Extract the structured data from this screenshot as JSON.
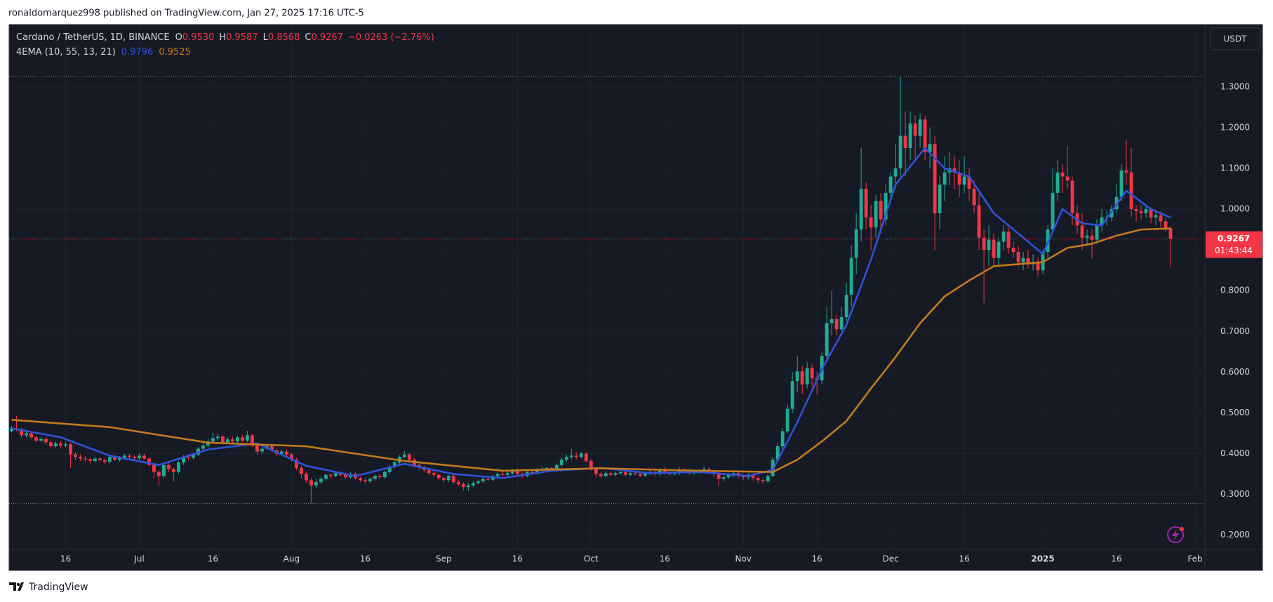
{
  "header": {
    "published": "ronaldomarquez998 published on TradingView.com, Jan 27, 2025 17:16 UTC-5"
  },
  "footer": {
    "brand": "TradingView"
  },
  "chart_data": {
    "type": "candlestick",
    "symbol": "Cardano / TetherUS, 1D, BINANCE",
    "legend": [
      {
        "label": "O",
        "value": "0.9530"
      },
      {
        "label": "H",
        "value": "0.9587"
      },
      {
        "label": "L",
        "value": "0.8568"
      },
      {
        "label": "C",
        "value": "0.9267"
      }
    ],
    "change": "−0.0263 (−2.76%)",
    "indicator": {
      "name": "4EMA (10, 55, 13, 21)",
      "values": [
        "0.9796",
        "0.9525"
      ]
    },
    "currency": "USDT",
    "countdown": "01:43:44",
    "up_color": "#22ab94",
    "down_color": "#f23645",
    "grid": true,
    "xlim": [
      -0.5,
      243
    ],
    "ylim": [
      0.165,
      1.453
    ],
    "xticks": [
      {
        "value": 11,
        "label": "16"
      },
      {
        "value": 26,
        "label": "Jul"
      },
      {
        "value": 41,
        "label": "16"
      },
      {
        "value": 57,
        "label": "Aug"
      },
      {
        "value": 72,
        "label": "16"
      },
      {
        "value": 88,
        "label": "Sep"
      },
      {
        "value": 103,
        "label": "16"
      },
      {
        "value": 118,
        "label": "Oct"
      },
      {
        "value": 133,
        "label": "16"
      },
      {
        "value": 149,
        "label": "Nov"
      },
      {
        "value": 164,
        "label": "16"
      },
      {
        "value": 179,
        "label": "Dec"
      },
      {
        "value": 194,
        "label": "16"
      },
      {
        "value": 210,
        "label": "2025"
      },
      {
        "value": 225,
        "label": "16"
      },
      {
        "value": 241,
        "label": "Feb"
      }
    ],
    "yticks": [
      {
        "value": 0.2,
        "label": "0.2000"
      },
      {
        "value": 0.3,
        "label": "0.3000"
      },
      {
        "value": 0.4,
        "label": "0.4000"
      },
      {
        "value": 0.5,
        "label": "0.5000"
      },
      {
        "value": 0.6,
        "label": "0.6000"
      },
      {
        "value": 0.7,
        "label": "0.7000"
      },
      {
        "value": 0.8,
        "label": "0.8000"
      },
      {
        "value": 0.9,
        "label": "0.9000"
      },
      {
        "value": 1.0,
        "label": "1.0000"
      },
      {
        "value": 1.1,
        "label": "1.1000"
      },
      {
        "value": 1.2,
        "label": "1.2000"
      },
      {
        "value": 1.3,
        "label": "1.3000"
      }
    ],
    "candles": {
      "open": [
        0.455,
        0.462,
        0.458,
        0.445,
        0.45,
        0.44,
        0.432,
        0.436,
        0.428,
        0.418,
        0.425,
        0.42,
        0.423,
        0.398,
        0.392,
        0.388,
        0.386,
        0.382,
        0.388,
        0.384,
        0.38,
        0.392,
        0.385,
        0.39,
        0.395,
        0.392,
        0.389,
        0.395,
        0.388,
        0.372,
        0.355,
        0.345,
        0.372,
        0.362,
        0.355,
        0.378,
        0.392,
        0.39,
        0.398,
        0.412,
        0.42,
        0.43,
        0.438,
        0.442,
        0.428,
        0.435,
        0.43,
        0.44,
        0.432,
        0.445,
        0.42,
        0.405,
        0.412,
        0.418,
        0.408,
        0.4,
        0.405,
        0.398,
        0.385,
        0.365,
        0.35,
        0.335,
        0.322,
        0.33,
        0.338,
        0.348,
        0.345,
        0.352,
        0.348,
        0.342,
        0.35,
        0.34,
        0.335,
        0.332,
        0.338,
        0.345,
        0.342,
        0.355,
        0.368,
        0.378,
        0.392,
        0.398,
        0.385,
        0.372,
        0.365,
        0.36,
        0.352,
        0.348,
        0.34,
        0.335,
        0.345,
        0.33,
        0.325,
        0.318,
        0.322,
        0.328,
        0.332,
        0.338,
        0.336,
        0.345,
        0.35,
        0.348,
        0.352,
        0.358,
        0.35,
        0.345,
        0.355,
        0.352,
        0.36,
        0.362,
        0.365,
        0.36,
        0.372,
        0.385,
        0.392,
        0.395,
        0.392,
        0.4,
        0.382,
        0.362,
        0.35,
        0.345,
        0.352,
        0.348,
        0.352,
        0.355,
        0.348,
        0.352,
        0.35,
        0.346,
        0.352,
        0.355,
        0.35,
        0.358,
        0.355,
        0.35,
        0.352,
        0.36,
        0.358,
        0.352,
        0.355,
        0.358,
        0.362,
        0.355,
        0.35,
        0.338,
        0.342,
        0.348,
        0.352,
        0.345,
        0.342,
        0.348,
        0.34,
        0.335,
        0.332,
        0.345,
        0.385,
        0.418,
        0.455,
        0.51,
        0.578,
        0.602,
        0.57,
        0.61,
        0.585,
        0.58,
        0.64,
        0.72,
        0.73,
        0.705,
        0.735,
        0.79,
        0.88,
        0.95,
        1.05,
        0.98,
        0.955,
        1.02,
        0.975,
        1.04,
        1.08,
        1.1,
        1.18,
        1.15,
        1.21,
        1.18,
        1.22,
        1.14,
        1.16,
        0.99,
        1.06,
        1.09,
        1.1,
        1.09,
        1.06,
        1.08,
        1.05,
        1.01,
        0.93,
        0.9,
        0.925,
        0.88,
        0.92,
        0.945,
        0.905,
        0.895,
        0.87,
        0.88,
        0.865,
        0.87,
        0.85,
        0.895,
        0.95,
        1.04,
        1.09,
        1.08,
        1.07,
        0.99,
        0.96,
        0.93,
        0.935,
        0.925,
        0.96,
        0.98,
        0.98,
        1.0,
        1.03,
        1.095,
        1.09,
        1.0,
        0.995,
        0.99,
        1.0,
        0.98,
        0.985,
        0.97,
        0.953
      ],
      "high": [
        0.468,
        0.492,
        0.463,
        0.456,
        0.455,
        0.444,
        0.442,
        0.44,
        0.432,
        0.43,
        0.43,
        0.428,
        0.426,
        0.404,
        0.398,
        0.394,
        0.39,
        0.392,
        0.392,
        0.388,
        0.396,
        0.396,
        0.394,
        0.399,
        0.399,
        0.396,
        0.4,
        0.4,
        0.392,
        0.376,
        0.36,
        0.376,
        0.378,
        0.366,
        0.382,
        0.396,
        0.398,
        0.402,
        0.416,
        0.426,
        0.436,
        0.452,
        0.45,
        0.446,
        0.44,
        0.442,
        0.444,
        0.446,
        0.456,
        0.448,
        0.424,
        0.416,
        0.422,
        0.422,
        0.412,
        0.41,
        0.41,
        0.402,
        0.39,
        0.37,
        0.356,
        0.34,
        0.338,
        0.344,
        0.352,
        0.352,
        0.356,
        0.356,
        0.352,
        0.354,
        0.354,
        0.344,
        0.34,
        0.342,
        0.348,
        0.35,
        0.358,
        0.372,
        0.382,
        0.396,
        0.406,
        0.402,
        0.39,
        0.376,
        0.37,
        0.364,
        0.358,
        0.352,
        0.344,
        0.348,
        0.348,
        0.336,
        0.33,
        0.328,
        0.332,
        0.336,
        0.342,
        0.342,
        0.348,
        0.354,
        0.356,
        0.356,
        0.362,
        0.364,
        0.354,
        0.358,
        0.358,
        0.364,
        0.368,
        0.368,
        0.368,
        0.376,
        0.39,
        0.398,
        0.412,
        0.404,
        0.404,
        0.404,
        0.386,
        0.366,
        0.354,
        0.356,
        0.356,
        0.356,
        0.36,
        0.358,
        0.356,
        0.356,
        0.354,
        0.356,
        0.358,
        0.358,
        0.362,
        0.366,
        0.358,
        0.356,
        0.366,
        0.364,
        0.362,
        0.358,
        0.362,
        0.368,
        0.366,
        0.36,
        0.354,
        0.346,
        0.352,
        0.356,
        0.356,
        0.35,
        0.352,
        0.352,
        0.344,
        0.34,
        0.35,
        0.392,
        0.425,
        0.462,
        0.52,
        0.6,
        0.64,
        0.615,
        0.625,
        0.62,
        0.6,
        0.65,
        0.76,
        0.8,
        0.74,
        0.76,
        0.82,
        0.91,
        0.99,
        1.15,
        1.065,
        1.01,
        1.035,
        1.04,
        1.06,
        1.09,
        1.16,
        1.325,
        1.24,
        1.24,
        1.23,
        1.235,
        1.23,
        1.2,
        1.18,
        1.08,
        1.13,
        1.14,
        1.13,
        1.12,
        1.13,
        1.1,
        1.07,
        1.04,
        0.95,
        0.96,
        0.94,
        0.93,
        0.96,
        0.955,
        0.92,
        0.91,
        0.895,
        0.9,
        0.89,
        0.88,
        0.9,
        0.96,
        1.1,
        1.12,
        1.11,
        1.155,
        1.08,
        1.01,
        0.99,
        0.95,
        0.95,
        0.975,
        1.0,
        0.995,
        1.01,
        1.06,
        1.11,
        1.17,
        1.15,
        1.01,
        1.01,
        1.01,
        1.005,
        0.995,
        0.995,
        0.98,
        0.9587
      ],
      "low": [
        0.452,
        0.455,
        0.44,
        0.44,
        0.436,
        0.428,
        0.428,
        0.422,
        0.412,
        0.414,
        0.414,
        0.415,
        0.365,
        0.385,
        0.382,
        0.38,
        0.376,
        0.378,
        0.379,
        0.374,
        0.376,
        0.382,
        0.381,
        0.386,
        0.388,
        0.385,
        0.384,
        0.384,
        0.368,
        0.34,
        0.322,
        0.34,
        0.355,
        0.332,
        0.35,
        0.372,
        0.384,
        0.386,
        0.394,
        0.406,
        0.416,
        0.425,
        0.432,
        0.424,
        0.424,
        0.426,
        0.425,
        0.428,
        0.428,
        0.416,
        0.398,
        0.4,
        0.408,
        0.404,
        0.394,
        0.396,
        0.394,
        0.38,
        0.36,
        0.34,
        0.328,
        0.278,
        0.316,
        0.326,
        0.334,
        0.34,
        0.342,
        0.344,
        0.338,
        0.338,
        0.336,
        0.33,
        0.328,
        0.328,
        0.334,
        0.338,
        0.338,
        0.35,
        0.364,
        0.374,
        0.388,
        0.38,
        0.366,
        0.36,
        0.354,
        0.346,
        0.342,
        0.334,
        0.33,
        0.33,
        0.326,
        0.32,
        0.31,
        0.308,
        0.318,
        0.324,
        0.328,
        0.332,
        0.332,
        0.34,
        0.344,
        0.344,
        0.348,
        0.346,
        0.34,
        0.342,
        0.348,
        0.348,
        0.355,
        0.358,
        0.356,
        0.356,
        0.368,
        0.38,
        0.386,
        0.386,
        0.388,
        0.378,
        0.358,
        0.342,
        0.34,
        0.342,
        0.344,
        0.344,
        0.348,
        0.344,
        0.344,
        0.346,
        0.342,
        0.342,
        0.348,
        0.346,
        0.346,
        0.35,
        0.346,
        0.346,
        0.348,
        0.352,
        0.348,
        0.348,
        0.35,
        0.352,
        0.35,
        0.342,
        0.32,
        0.332,
        0.338,
        0.342,
        0.34,
        0.336,
        0.336,
        0.334,
        0.328,
        0.326,
        0.328,
        0.342,
        0.38,
        0.41,
        0.45,
        0.5,
        0.55,
        0.545,
        0.56,
        0.565,
        0.545,
        0.57,
        0.63,
        0.69,
        0.69,
        0.7,
        0.725,
        0.76,
        0.84,
        0.92,
        0.95,
        0.9,
        0.93,
        0.94,
        0.96,
        1.02,
        1.05,
        1.08,
        1.08,
        1.12,
        1.12,
        1.15,
        1.12,
        1.1,
        0.9,
        0.95,
        1.02,
        1.06,
        1.05,
        1.03,
        1.04,
        1.02,
        0.99,
        0.9,
        0.77,
        0.86,
        0.86,
        0.86,
        0.9,
        0.89,
        0.88,
        0.86,
        0.85,
        0.855,
        0.85,
        0.835,
        0.84,
        0.88,
        0.945,
        1.02,
        1.04,
        1.05,
        0.96,
        0.94,
        0.9,
        0.91,
        0.88,
        0.915,
        0.945,
        0.96,
        0.97,
        0.99,
        1.02,
        1.06,
        0.98,
        0.97,
        0.975,
        0.978,
        0.965,
        0.96,
        0.955,
        0.945,
        0.8568
      ],
      "close": [
        0.462,
        0.458,
        0.445,
        0.45,
        0.44,
        0.432,
        0.436,
        0.428,
        0.418,
        0.425,
        0.42,
        0.423,
        0.398,
        0.392,
        0.388,
        0.386,
        0.382,
        0.388,
        0.384,
        0.38,
        0.392,
        0.385,
        0.39,
        0.395,
        0.392,
        0.389,
        0.395,
        0.388,
        0.372,
        0.355,
        0.345,
        0.372,
        0.362,
        0.355,
        0.378,
        0.392,
        0.39,
        0.398,
        0.412,
        0.42,
        0.43,
        0.438,
        0.442,
        0.428,
        0.435,
        0.43,
        0.44,
        0.432,
        0.445,
        0.42,
        0.405,
        0.412,
        0.418,
        0.408,
        0.4,
        0.405,
        0.398,
        0.385,
        0.365,
        0.35,
        0.335,
        0.322,
        0.33,
        0.338,
        0.348,
        0.345,
        0.352,
        0.348,
        0.342,
        0.35,
        0.34,
        0.335,
        0.332,
        0.338,
        0.345,
        0.342,
        0.355,
        0.368,
        0.378,
        0.392,
        0.398,
        0.385,
        0.372,
        0.365,
        0.36,
        0.352,
        0.348,
        0.34,
        0.335,
        0.345,
        0.33,
        0.325,
        0.318,
        0.322,
        0.328,
        0.332,
        0.338,
        0.336,
        0.345,
        0.35,
        0.348,
        0.352,
        0.358,
        0.35,
        0.345,
        0.355,
        0.352,
        0.36,
        0.362,
        0.365,
        0.36,
        0.372,
        0.385,
        0.392,
        0.395,
        0.392,
        0.4,
        0.382,
        0.362,
        0.35,
        0.345,
        0.352,
        0.348,
        0.352,
        0.355,
        0.348,
        0.352,
        0.35,
        0.346,
        0.352,
        0.355,
        0.35,
        0.358,
        0.355,
        0.35,
        0.352,
        0.36,
        0.358,
        0.352,
        0.355,
        0.358,
        0.362,
        0.355,
        0.35,
        0.338,
        0.342,
        0.348,
        0.352,
        0.345,
        0.342,
        0.348,
        0.34,
        0.335,
        0.332,
        0.345,
        0.385,
        0.418,
        0.455,
        0.51,
        0.578,
        0.602,
        0.57,
        0.61,
        0.585,
        0.58,
        0.64,
        0.72,
        0.73,
        0.705,
        0.735,
        0.79,
        0.88,
        0.95,
        1.05,
        0.98,
        0.955,
        1.02,
        0.975,
        1.04,
        1.08,
        1.1,
        1.18,
        1.15,
        1.21,
        1.18,
        1.22,
        1.14,
        1.16,
        0.99,
        1.06,
        1.09,
        1.1,
        1.09,
        1.06,
        1.08,
        1.05,
        1.01,
        0.93,
        0.9,
        0.925,
        0.88,
        0.92,
        0.945,
        0.905,
        0.895,
        0.87,
        0.88,
        0.865,
        0.87,
        0.85,
        0.895,
        0.95,
        1.04,
        1.09,
        1.08,
        1.07,
        0.99,
        0.96,
        0.93,
        0.935,
        0.925,
        0.96,
        0.98,
        0.98,
        1.0,
        1.03,
        1.095,
        1.09,
        1.0,
        0.995,
        0.99,
        1.0,
        0.98,
        0.985,
        0.97,
        0.953,
        0.9267
      ]
    },
    "series": [
      {
        "color": "#2f52d8",
        "x": [
          0,
          10,
          20,
          30,
          40,
          50,
          60,
          70,
          80,
          90,
          100,
          110,
          120,
          130,
          140,
          150,
          155,
          160,
          165,
          170,
          175,
          180,
          186,
          190,
          195,
          200,
          205,
          210,
          214,
          218,
          222,
          227,
          232,
          236
        ],
        "values": [
          0.462,
          0.44,
          0.395,
          0.372,
          0.41,
          0.425,
          0.37,
          0.345,
          0.375,
          0.35,
          0.34,
          0.358,
          0.365,
          0.352,
          0.355,
          0.345,
          0.36,
          0.477,
          0.607,
          0.716,
          0.876,
          1.06,
          1.15,
          1.1,
          1.08,
          0.99,
          0.94,
          0.89,
          1.0,
          0.965,
          0.96,
          1.045,
          1.0,
          0.9796
        ]
      },
      {
        "color": "#c47a1c",
        "x": [
          0,
          20,
          40,
          60,
          80,
          100,
          120,
          140,
          155,
          160,
          165,
          170,
          175,
          180,
          185,
          190,
          195,
          200,
          205,
          210,
          215,
          220,
          225,
          230,
          236
        ],
        "values": [
          0.483,
          0.465,
          0.427,
          0.418,
          0.382,
          0.358,
          0.364,
          0.358,
          0.355,
          0.385,
          0.43,
          0.48,
          0.56,
          0.637,
          0.72,
          0.786,
          0.825,
          0.86,
          0.865,
          0.87,
          0.905,
          0.915,
          0.935,
          0.95,
          0.9525
        ]
      }
    ]
  }
}
